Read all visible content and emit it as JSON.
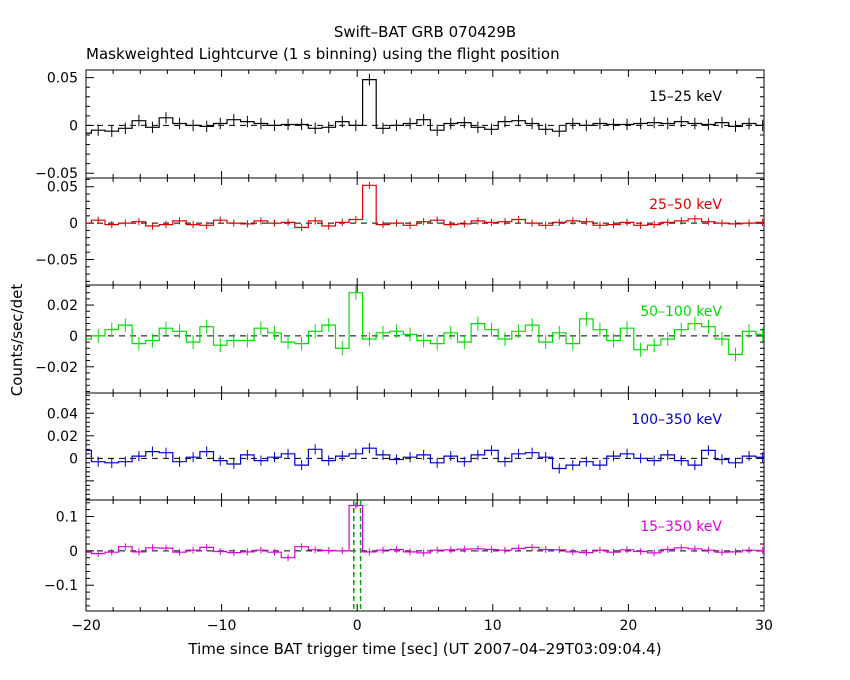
{
  "chart_data": {
    "type": "step",
    "title": "Swift–BAT GRB 070429B",
    "subtitle": "Maskweighted Lightcurve (1 s binning) using the flight position",
    "xlabel": "Time since BAT trigger time [sec] (UT 2007–04–29T03:09:04.4)",
    "ylabel": "Counts/sec/det",
    "xlim": [
      -20,
      30
    ],
    "xticks": [
      -20,
      -10,
      0,
      10,
      20,
      30
    ],
    "xtick_labels": [
      "−20",
      "−10",
      "0",
      "10",
      "20",
      "30"
    ],
    "x_bin_start": -20.6,
    "x_bin_width": 1.0,
    "zero_line": "dashed",
    "trigger_marker": {
      "x_values": [
        -0.25,
        0.25
      ],
      "color": "#00aa00",
      "style": "dashed",
      "panel": "15–350 keV"
    },
    "panels": [
      {
        "name": "15–25 keV",
        "color": "#000000",
        "ylim": [
          -0.055,
          0.058
        ],
        "yticks": [
          -0.05,
          0,
          0.05
        ],
        "ytick_labels": [
          "−0.05",
          "0",
          "0.05"
        ],
        "values": [
          -0.008,
          -0.005,
          -0.006,
          -0.003,
          0.005,
          -0.002,
          0.008,
          0.002,
          0.0,
          -0.001,
          0.002,
          0.006,
          0.004,
          0.002,
          0.0,
          0.001,
          0.001,
          -0.003,
          -0.002,
          0.004,
          0.0,
          0.048,
          -0.003,
          0.0,
          0.002,
          0.006,
          -0.005,
          0.002,
          0.003,
          -0.002,
          -0.004,
          0.004,
          0.005,
          0.002,
          -0.004,
          -0.006,
          0.002,
          0.0,
          0.002,
          0.001,
          0.001,
          0.002,
          0.003,
          0.002,
          0.004,
          0.002,
          0.001,
          0.003,
          -0.001,
          0.002,
          0.0
        ],
        "error": 0.006
      },
      {
        "name": "25–50 keV",
        "color": "#dd0000",
        "ylim": [
          -0.085,
          0.062
        ],
        "yticks": [
          -0.05,
          0,
          0.05
        ],
        "ytick_labels": [
          "−0.05",
          "0",
          "0.05"
        ],
        "values": [
          0.0,
          0.004,
          -0.002,
          0.0,
          0.002,
          -0.004,
          -0.002,
          0.003,
          -0.002,
          -0.003,
          0.004,
          0.0,
          -0.001,
          0.003,
          0.0,
          0.001,
          -0.006,
          0.003,
          -0.004,
          0.001,
          0.005,
          0.052,
          -0.002,
          0.0,
          -0.003,
          0.002,
          0.004,
          -0.002,
          -0.001,
          0.003,
          0.001,
          0.002,
          0.005,
          0.0,
          -0.003,
          0.001,
          0.003,
          0.002,
          -0.003,
          -0.002,
          0.001,
          -0.003,
          -0.002,
          0.001,
          0.003,
          0.006,
          0.002,
          0.0,
          -0.001,
          0.0,
          0.001
        ],
        "error": 0.005
      },
      {
        "name": "50–100 keV",
        "color": "#00dd00",
        "ylim": [
          -0.037,
          0.033
        ],
        "yticks": [
          -0.02,
          0,
          0.02
        ],
        "ytick_labels": [
          "−0.02",
          "0",
          "0.02"
        ],
        "values": [
          -0.002,
          0.0,
          0.004,
          0.007,
          -0.005,
          -0.003,
          0.005,
          0.003,
          -0.004,
          0.006,
          -0.006,
          -0.003,
          -0.003,
          0.005,
          0.002,
          -0.004,
          -0.005,
          0.003,
          0.007,
          -0.008,
          0.028,
          -0.002,
          0.002,
          0.003,
          0.001,
          -0.003,
          -0.005,
          0.002,
          -0.004,
          0.008,
          0.004,
          -0.002,
          0.003,
          0.007,
          -0.004,
          0.002,
          -0.005,
          0.011,
          0.004,
          -0.003,
          0.005,
          -0.009,
          -0.006,
          -0.002,
          0.004,
          0.008,
          0.006,
          -0.002,
          -0.012,
          0.003,
          0.001
        ],
        "error": 0.0045
      },
      {
        "name": "100–350 keV",
        "color": "#0000cc",
        "ylim": [
          -0.037,
          0.058
        ],
        "yticks": [
          0,
          0.02,
          0.04
        ],
        "ytick_labels": [
          "0",
          "0.02",
          "0.04"
        ],
        "values": [
          0.007,
          -0.003,
          -0.004,
          -0.003,
          0.002,
          0.006,
          0.005,
          -0.003,
          0.001,
          0.006,
          -0.002,
          -0.005,
          0.003,
          -0.002,
          0.001,
          0.004,
          -0.006,
          0.008,
          -0.002,
          0.002,
          0.004,
          0.009,
          0.003,
          -0.001,
          0.001,
          0.003,
          -0.004,
          0.002,
          -0.003,
          0.003,
          0.007,
          -0.003,
          0.004,
          0.005,
          0.001,
          -0.009,
          -0.006,
          -0.003,
          -0.006,
          0.002,
          0.004,
          0.0,
          -0.002,
          0.003,
          -0.002,
          -0.006,
          0.007,
          -0.001,
          -0.004,
          0.002,
          0.001
        ],
        "error": 0.0045
      },
      {
        "name": "15–350 keV",
        "color": "#dd00dd",
        "ylim": [
          -0.175,
          0.148
        ],
        "yticks": [
          -0.1,
          0,
          0.1
        ],
        "ytick_labels": [
          "−0.1",
          "0",
          "0.1"
        ],
        "values": [
          -0.004,
          -0.008,
          -0.004,
          0.012,
          -0.003,
          0.009,
          0.008,
          -0.004,
          0.002,
          0.01,
          -0.002,
          -0.005,
          -0.003,
          0.002,
          -0.004,
          -0.02,
          0.012,
          0.003,
          0.001,
          0.0,
          0.132,
          -0.003,
          0.002,
          0.004,
          -0.003,
          -0.006,
          0.002,
          0.003,
          0.005,
          0.006,
          0.004,
          0.002,
          0.007,
          0.01,
          0.004,
          0.003,
          -0.003,
          -0.005,
          0.002,
          -0.004,
          0.003,
          -0.002,
          -0.006,
          0.004,
          0.009,
          0.006,
          0.002,
          -0.004,
          -0.003,
          0.002,
          0.001
        ],
        "error": 0.01
      }
    ]
  }
}
